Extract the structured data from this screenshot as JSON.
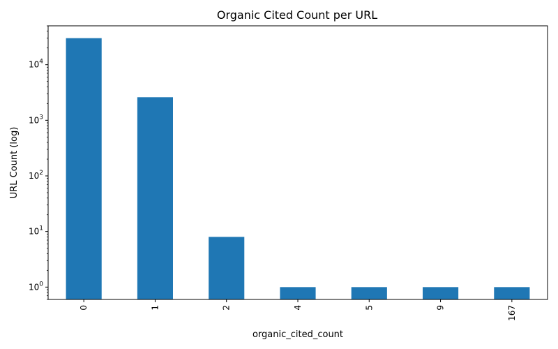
{
  "chart_data": {
    "type": "bar",
    "title": "Organic Cited Count per URL",
    "xlabel": "organic_cited_count",
    "ylabel": "URL Count (log)",
    "yscale": "log",
    "ylim": [
      0.6,
      50000
    ],
    "yticks": [
      {
        "value": 1,
        "base": "10",
        "exp": "0"
      },
      {
        "value": 10,
        "base": "10",
        "exp": "1"
      },
      {
        "value": 100,
        "base": "10",
        "exp": "2"
      },
      {
        "value": 1000,
        "base": "10",
        "exp": "3"
      },
      {
        "value": 10000,
        "base": "10",
        "exp": "4"
      }
    ],
    "categories": [
      "0",
      "1",
      "2",
      "4",
      "5",
      "9",
      "167"
    ],
    "values": [
      30000,
      2600,
      8,
      1,
      1,
      1,
      1
    ],
    "bar_color": "#1f77b4",
    "grid": false,
    "legend": "none"
  }
}
